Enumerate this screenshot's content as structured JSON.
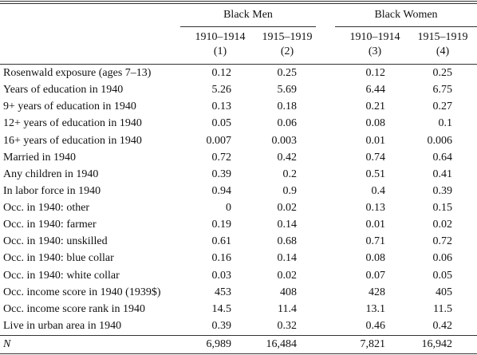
{
  "table": {
    "groups": [
      "Black Men",
      "Black Women"
    ],
    "columns": [
      {
        "years": "1910–1914",
        "number": "(1)"
      },
      {
        "years": "1915–1919",
        "number": "(2)"
      },
      {
        "years": "1910–1914",
        "number": "(3)"
      },
      {
        "years": "1915–1919",
        "number": "(4)"
      }
    ],
    "rows": [
      {
        "label": "Rosenwald exposure (ages 7–13)",
        "values": [
          "0.12",
          "0.25",
          "0.12",
          "0.25"
        ]
      },
      {
        "label": "Years of education in 1940",
        "values": [
          "5.26",
          "5.69",
          "6.44",
          "6.75"
        ]
      },
      {
        "label": "9+ years of education in 1940",
        "values": [
          "0.13",
          "0.18",
          "0.21",
          "0.27"
        ]
      },
      {
        "label": "12+ years of education in 1940",
        "values": [
          "0.05",
          "0.06",
          "0.08",
          "0.1"
        ]
      },
      {
        "label": "16+ years of education in 1940",
        "values": [
          "0.007",
          "0.003",
          "0.01",
          "0.006"
        ]
      },
      {
        "label": "Married in 1940",
        "values": [
          "0.72",
          "0.42",
          "0.74",
          "0.64"
        ]
      },
      {
        "label": "Any children in 1940",
        "values": [
          "0.39",
          "0.2",
          "0.51",
          "0.41"
        ]
      },
      {
        "label": "In labor force in 1940",
        "values": [
          "0.94",
          "0.9",
          "0.4",
          "0.39"
        ]
      },
      {
        "label": "Occ. in 1940: other",
        "values": [
          "0",
          "0.02",
          "0.13",
          "0.15"
        ]
      },
      {
        "label": "Occ. in 1940: farmer",
        "values": [
          "0.19",
          "0.14",
          "0.01",
          "0.02"
        ]
      },
      {
        "label": "Occ. in 1940: unskilled",
        "values": [
          "0.61",
          "0.68",
          "0.71",
          "0.72"
        ]
      },
      {
        "label": "Occ. in 1940: blue collar",
        "values": [
          "0.16",
          "0.14",
          "0.08",
          "0.06"
        ]
      },
      {
        "label": "Occ. in 1940: white collar",
        "values": [
          "0.03",
          "0.02",
          "0.07",
          "0.05"
        ]
      },
      {
        "label": "Occ. income score in 1940 (1939$)",
        "values": [
          "453",
          "408",
          "428",
          "405"
        ]
      },
      {
        "label": "Occ. income score rank in 1940",
        "values": [
          "14.5",
          "11.4",
          "13.1",
          "11.5"
        ]
      },
      {
        "label": "Live in urban area in 1940",
        "values": [
          "0.39",
          "0.32",
          "0.46",
          "0.42"
        ]
      }
    ],
    "footer": {
      "label": "N",
      "values": [
        "6,989",
        "16,484",
        "7,821",
        "16,942"
      ]
    }
  }
}
